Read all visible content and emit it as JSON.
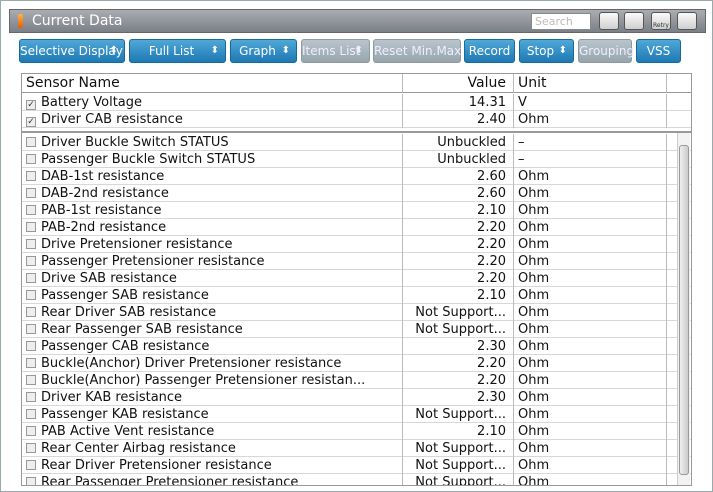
{
  "header": {
    "title": "Current Data",
    "search_placeholder": "Search",
    "retry_label": "Retry"
  },
  "toolbar": {
    "buttons": [
      {
        "label": "Selective Display",
        "dropdown": true,
        "enabled": true
      },
      {
        "label": "Full List",
        "dropdown": true,
        "enabled": true
      },
      {
        "label": "Graph",
        "dropdown": true,
        "enabled": true
      },
      {
        "label": "Items List",
        "dropdown": true,
        "enabled": false
      },
      {
        "label": "Reset Min.Max",
        "dropdown": false,
        "enabled": false
      },
      {
        "label": "Record",
        "dropdown": false,
        "enabled": true
      },
      {
        "label": "Stop",
        "dropdown": true,
        "enabled": true
      },
      {
        "label": "Grouping",
        "dropdown": false,
        "enabled": false
      },
      {
        "label": "VSS",
        "dropdown": false,
        "enabled": true
      }
    ]
  },
  "table": {
    "columns": [
      "Sensor Name",
      "Value",
      "Unit"
    ],
    "pinned_rows": [
      {
        "name": "Battery Voltage",
        "value": "14.31",
        "unit": "V",
        "checked": true
      },
      {
        "name": "Driver CAB resistance",
        "value": "2.40",
        "unit": "Ohm",
        "checked": true
      }
    ],
    "rows": [
      {
        "name": "Driver Buckle Switch STATUS",
        "value": "Unbuckled",
        "unit": "–",
        "checked": false
      },
      {
        "name": "Passenger Buckle Switch STATUS",
        "value": "Unbuckled",
        "unit": "–",
        "checked": false
      },
      {
        "name": "DAB-1st resistance",
        "value": "2.60",
        "unit": "Ohm",
        "checked": false
      },
      {
        "name": "DAB-2nd resistance",
        "value": "2.60",
        "unit": "Ohm",
        "checked": false
      },
      {
        "name": "PAB-1st resistance",
        "value": "2.10",
        "unit": "Ohm",
        "checked": false
      },
      {
        "name": "PAB-2nd resistance",
        "value": "2.20",
        "unit": "Ohm",
        "checked": false
      },
      {
        "name": "Drive Pretensioner resistance",
        "value": "2.20",
        "unit": "Ohm",
        "checked": false
      },
      {
        "name": "Passenger Pretensioner resistance",
        "value": "2.20",
        "unit": "Ohm",
        "checked": false
      },
      {
        "name": "Drive SAB resistance",
        "value": "2.20",
        "unit": "Ohm",
        "checked": false
      },
      {
        "name": "Passenger SAB resistance",
        "value": "2.10",
        "unit": "Ohm",
        "checked": false
      },
      {
        "name": "Rear Driver SAB resistance",
        "value": "Not Support...",
        "unit": "Ohm",
        "checked": false
      },
      {
        "name": "Rear Passenger SAB resistance",
        "value": "Not Support...",
        "unit": "Ohm",
        "checked": false
      },
      {
        "name": "Passenger CAB resistance",
        "value": "2.30",
        "unit": "Ohm",
        "checked": false
      },
      {
        "name": "Buckle(Anchor) Driver Pretensioner resistance",
        "value": "2.20",
        "unit": "Ohm",
        "checked": false
      },
      {
        "name": "Buckle(Anchor) Passenger Pretensioner resistan...",
        "value": "2.20",
        "unit": "Ohm",
        "checked": false
      },
      {
        "name": "Driver KAB resistance",
        "value": "2.30",
        "unit": "Ohm",
        "checked": false
      },
      {
        "name": "Passenger KAB resistance",
        "value": "Not Support...",
        "unit": "Ohm",
        "checked": false
      },
      {
        "name": "PAB Active Vent resistance",
        "value": "2.10",
        "unit": "Ohm",
        "checked": false
      },
      {
        "name": "Rear Center Airbag resistance",
        "value": "Not Support...",
        "unit": "Ohm",
        "checked": false
      },
      {
        "name": "Rear Driver Pretensioner resistance",
        "value": "Not Support...",
        "unit": "Ohm",
        "checked": false
      },
      {
        "name": "Rear Passenger Pretensioner resistance",
        "value": "Not Support...",
        "unit": "Ohm",
        "checked": false
      }
    ]
  }
}
